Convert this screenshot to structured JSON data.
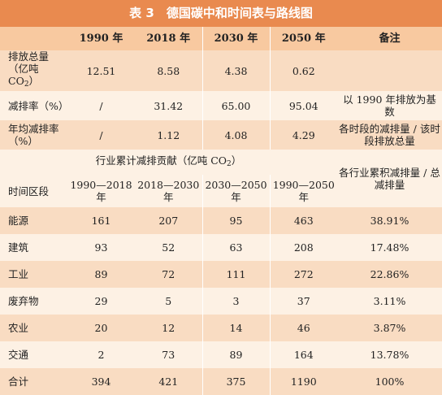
{
  "title": "表 3　德国碳中和时间表与路线图",
  "header": [
    "",
    "1990 年",
    "2018 年",
    "2030 年",
    "2050 年",
    "备注"
  ],
  "emission_rows": [
    {
      "label_pre": "排放总量（亿吨 CO",
      "label_sub": "2",
      "label_post": "）",
      "values": [
        "12.51",
        "8.58",
        "4.38",
        "0.62"
      ],
      "note": ""
    },
    {
      "label_pre": "减排率（%）",
      "label_sub": "",
      "label_post": "",
      "values": [
        "/",
        "31.42",
        "65.00",
        "95.04"
      ],
      "note": "以 1990 年排放为基数"
    },
    {
      "label_pre": "年均减排率（%）",
      "label_sub": "",
      "label_post": "",
      "values": [
        "/",
        "1.12",
        "4.08",
        "4.29"
      ],
      "note": "各时段的减排量 / 该时段排放总量"
    }
  ],
  "section": {
    "title_pre": "行业累计减排贡献（亿吨 CO",
    "title_sub": "2",
    "title_post": "）",
    "note": "各行业累积减排量 / 总减排量",
    "period_label": "时间区段",
    "periods": [
      "1990—2018 年",
      "2018—2030 年",
      "2030—2050 年",
      "1990—2050 年"
    ]
  },
  "sectors": [
    {
      "name": "能源",
      "values": [
        "161",
        "207",
        "95",
        "463"
      ],
      "share": "38.91%"
    },
    {
      "name": "建筑",
      "values": [
        "93",
        "52",
        "63",
        "208"
      ],
      "share": "17.48%"
    },
    {
      "name": "工业",
      "values": [
        "89",
        "72",
        "111",
        "272"
      ],
      "share": "22.86%"
    },
    {
      "name": "废弃物",
      "values": [
        "29",
        "5",
        "3",
        "37"
      ],
      "share": "3.11%"
    },
    {
      "name": "农业",
      "values": [
        "20",
        "12",
        "14",
        "46"
      ],
      "share": "3.87%"
    },
    {
      "name": "交通",
      "values": [
        "2",
        "73",
        "89",
        "164"
      ],
      "share": "13.78%"
    },
    {
      "name": "合计",
      "values": [
        "394",
        "421",
        "375",
        "1190"
      ],
      "share": "100%"
    }
  ],
  "colors": {
    "title_bg": "#e98a4f",
    "header_bg": "#f8c9a0",
    "band_dark": "#f9dcc2",
    "band_light": "#fdf1e4"
  }
}
